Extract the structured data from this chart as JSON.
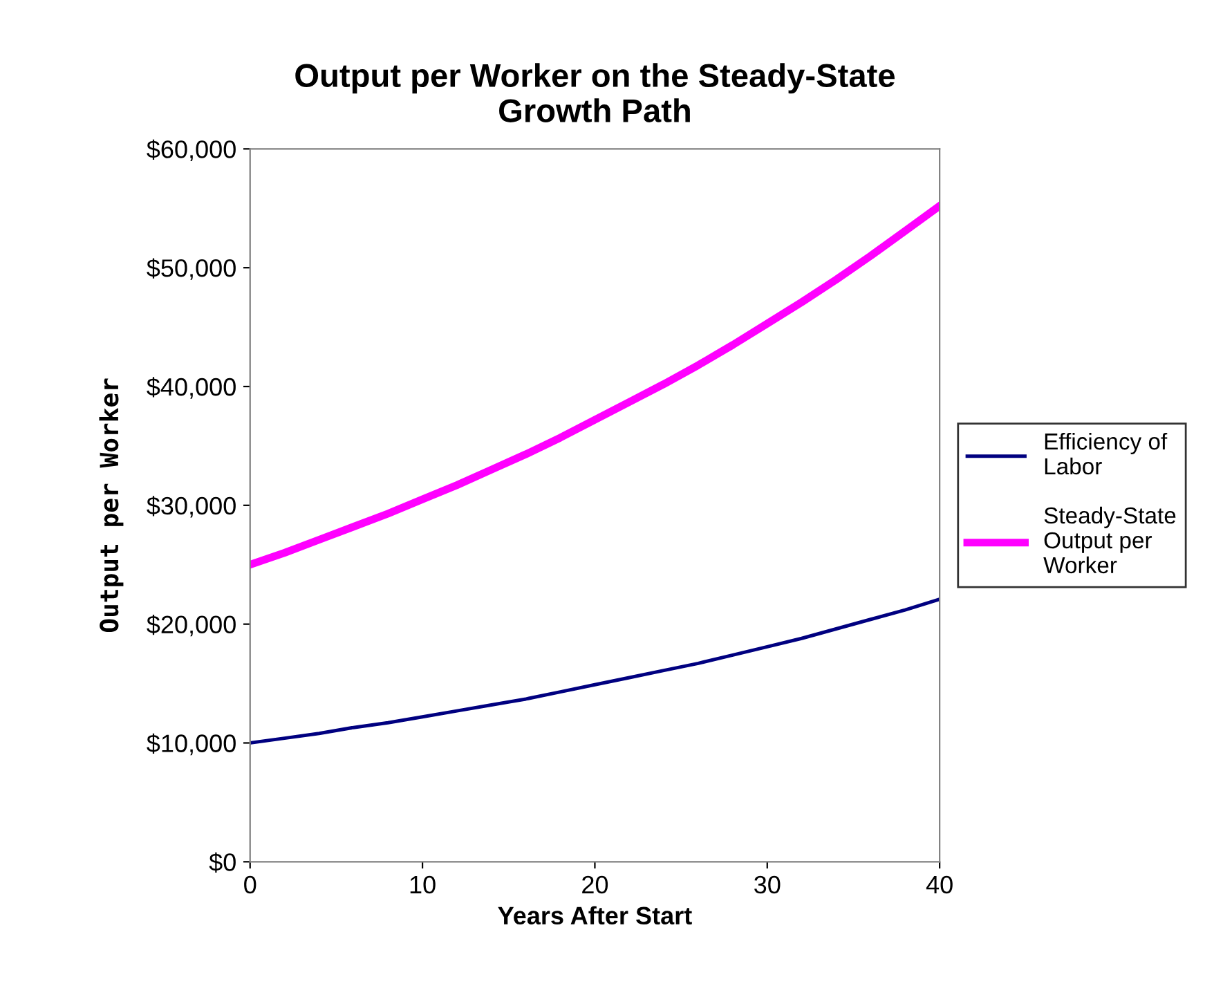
{
  "chart_data": {
    "type": "line",
    "title": "Output per Worker on the Steady-State\nGrowth Path",
    "xlabel": "Years After Start",
    "ylabel": "Output per Worker",
    "x": [
      0,
      2,
      4,
      6,
      8,
      10,
      12,
      14,
      16,
      18,
      20,
      22,
      24,
      26,
      28,
      30,
      32,
      34,
      36,
      38,
      40
    ],
    "series": [
      {
        "name": "Efficiency of\nLabor",
        "color": "#000080",
        "values": [
          10000,
          10400,
          10800,
          11300,
          11700,
          12200,
          12700,
          13200,
          13700,
          14300,
          14900,
          15500,
          16100,
          16700,
          17400,
          18100,
          18800,
          19600,
          20400,
          21200,
          22100
        ]
      },
      {
        "name": "Steady-State\nOutput per\nWorker",
        "color": "#ff00ff",
        "values": [
          25000,
          26000,
          27100,
          28200,
          29300,
          30500,
          31700,
          33000,
          34300,
          35700,
          37200,
          38700,
          40200,
          41800,
          43500,
          45300,
          47100,
          49000,
          51000,
          53100,
          55200
        ]
      }
    ],
    "xlim": [
      0,
      40
    ],
    "xticks": [
      0,
      10,
      20,
      30,
      40
    ],
    "ylim": [
      0,
      60000
    ],
    "yticks": [
      {
        "value": 0,
        "label": "$0"
      },
      {
        "value": 10000,
        "label": "$10,000"
      },
      {
        "value": 20000,
        "label": "$20,000"
      },
      {
        "value": 30000,
        "label": "$30,000"
      },
      {
        "value": 40000,
        "label": "$40,000"
      },
      {
        "value": 50000,
        "label": "$50,000"
      },
      {
        "value": 60000,
        "label": "$60,000"
      }
    ],
    "grid": false,
    "legend": "right",
    "marker": "none",
    "line_style": "solid"
  }
}
